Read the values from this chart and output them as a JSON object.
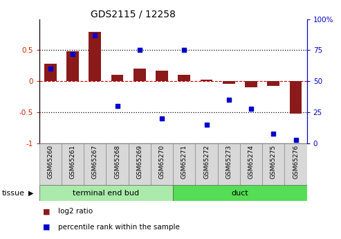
{
  "title": "GDS2115 / 12258",
  "samples": [
    "GSM65260",
    "GSM65261",
    "GSM65267",
    "GSM65268",
    "GSM65269",
    "GSM65270",
    "GSM65271",
    "GSM65272",
    "GSM65273",
    "GSM65274",
    "GSM65275",
    "GSM65276"
  ],
  "log2_ratio": [
    0.28,
    0.48,
    0.8,
    0.1,
    0.2,
    0.17,
    0.1,
    0.03,
    -0.04,
    -0.1,
    -0.07,
    -0.52
  ],
  "percentile_rank": [
    60,
    72,
    87,
    30,
    75,
    20,
    75,
    15,
    35,
    28,
    8,
    3
  ],
  "tissue_groups": [
    {
      "label": "terminal end bud",
      "start": 0,
      "end": 5,
      "color": "#aaeaaa"
    },
    {
      "label": "duct",
      "start": 6,
      "end": 11,
      "color": "#55dd55"
    }
  ],
  "bar_color": "#8b1a1a",
  "dot_color": "#0000cc",
  "ylim_left": [
    -1.0,
    1.0
  ],
  "ylim_right": [
    0,
    100
  ],
  "yticks_left": [
    -1.0,
    -0.5,
    0.0,
    0.5
  ],
  "yticks_right": [
    0,
    25,
    50,
    75,
    100
  ],
  "yticklabels_left": [
    "-1",
    "-0.5",
    "0",
    "0.5"
  ],
  "yticklabels_right": [
    "0",
    "25",
    "50",
    "75",
    "100%"
  ],
  "legend_items": [
    {
      "label": "log2 ratio",
      "color": "#8b1a1a"
    },
    {
      "label": "percentile rank within the sample",
      "color": "#0000cc"
    }
  ],
  "tissue_label": "tissue",
  "fig_width": 4.93,
  "fig_height": 3.45
}
